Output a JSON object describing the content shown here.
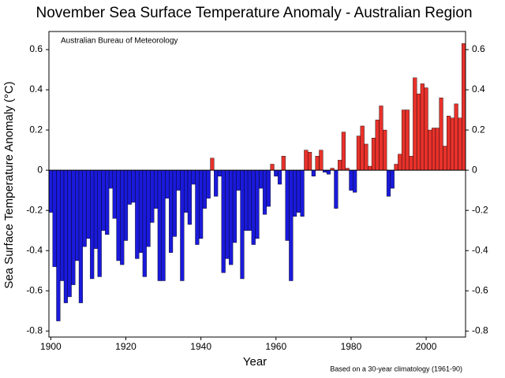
{
  "chart_data": {
    "type": "bar",
    "title": "November Sea Surface Temperature Anomaly - Australian Region",
    "xlabel": "Year",
    "ylabel": "Sea Surface Temperature Anomaly (°C)",
    "annotation": "Australian Bureau of Meteorology",
    "note": "Based on a 30-year climatology (1961-90)",
    "positive_color": "#e8322b",
    "negative_color": "#1a1adc",
    "x": [
      1900,
      1901,
      1902,
      1903,
      1904,
      1905,
      1906,
      1907,
      1908,
      1909,
      1910,
      1911,
      1912,
      1913,
      1914,
      1915,
      1916,
      1917,
      1918,
      1919,
      1920,
      1921,
      1922,
      1923,
      1924,
      1925,
      1926,
      1927,
      1928,
      1929,
      1930,
      1931,
      1932,
      1933,
      1934,
      1935,
      1936,
      1937,
      1938,
      1939,
      1940,
      1941,
      1942,
      1943,
      1944,
      1945,
      1946,
      1947,
      1948,
      1949,
      1950,
      1951,
      1952,
      1953,
      1954,
      1955,
      1956,
      1957,
      1958,
      1959,
      1960,
      1961,
      1962,
      1963,
      1964,
      1965,
      1966,
      1967,
      1968,
      1969,
      1970,
      1971,
      1972,
      1973,
      1974,
      1975,
      1976,
      1977,
      1978,
      1979,
      1980,
      1981,
      1982,
      1983,
      1984,
      1985,
      1986,
      1987,
      1988,
      1989,
      1990,
      1991,
      1992,
      1993,
      1994,
      1995,
      1996,
      1997,
      1998,
      1999,
      2000,
      2001,
      2002,
      2003,
      2004,
      2005,
      2006,
      2007,
      2008,
      2009,
      2010
    ],
    "values": [
      -0.21,
      -0.48,
      -0.75,
      -0.55,
      -0.66,
      -0.63,
      -0.57,
      -0.45,
      -0.66,
      -0.38,
      -0.34,
      -0.54,
      -0.39,
      -0.53,
      -0.3,
      -0.32,
      -0.09,
      -0.24,
      -0.45,
      -0.47,
      -0.35,
      -0.17,
      -0.16,
      -0.44,
      -0.41,
      -0.53,
      -0.38,
      -0.26,
      -0.19,
      -0.55,
      -0.55,
      -0.14,
      -0.41,
      -0.33,
      -0.1,
      -0.55,
      -0.21,
      -0.27,
      -0.07,
      -0.37,
      -0.34,
      -0.19,
      -0.14,
      0.06,
      -0.13,
      -0.03,
      -0.51,
      -0.44,
      -0.47,
      -0.36,
      -0.1,
      -0.54,
      -0.3,
      -0.3,
      -0.37,
      -0.34,
      -0.09,
      -0.22,
      -0.18,
      0.03,
      -0.03,
      -0.07,
      0.07,
      -0.35,
      -0.55,
      -0.23,
      -0.21,
      -0.23,
      0.1,
      0.09,
      -0.03,
      0.07,
      0.1,
      -0.01,
      -0.02,
      0.01,
      -0.19,
      0.05,
      0.19,
      0.01,
      -0.1,
      -0.11,
      0.17,
      0.22,
      0.13,
      0.02,
      0.16,
      0.25,
      0.32,
      0.2,
      -0.13,
      -0.09,
      0.03,
      0.08,
      0.3,
      0.3,
      0.07,
      0.46,
      0.38,
      0.43,
      0.41,
      0.2,
      0.21,
      0.21,
      0.36,
      0.12,
      0.27,
      0.26,
      0.33,
      0.26,
      0.63
    ],
    "xlim": [
      1899.5,
      2010.5
    ],
    "xticks": [
      1900,
      1920,
      1940,
      1960,
      1980,
      2000
    ],
    "ylim": [
      -0.83,
      0.69
    ],
    "yticks": [
      -0.8,
      -0.6,
      -0.4,
      -0.2,
      0,
      0.2,
      0.4,
      0.6
    ]
  }
}
